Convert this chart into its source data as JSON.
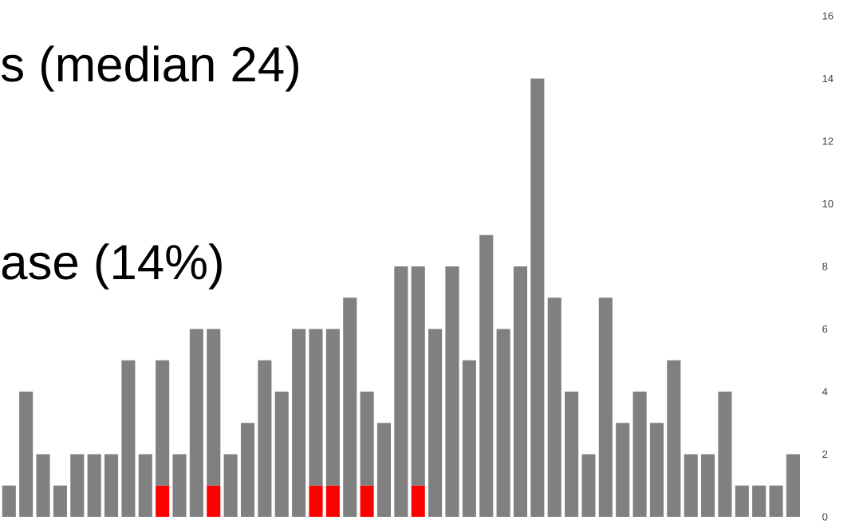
{
  "chart_data": {
    "type": "bar",
    "stacked": true,
    "annotations": [
      "s (median 24)",
      "ase (14%)"
    ],
    "categories": [
      null,
      null,
      null,
      null,
      null,
      null,
      null,
      null,
      null,
      null,
      null,
      null,
      null,
      null,
      null,
      null,
      null,
      null,
      null,
      null,
      null,
      null,
      null,
      null,
      null,
      null,
      null,
      null,
      null,
      null,
      null,
      null,
      null,
      null,
      null,
      null,
      null,
      null,
      null,
      null,
      null,
      null,
      null,
      null,
      null,
      null,
      null
    ],
    "series": [
      {
        "color": "#ff0000",
        "values": [
          null,
          null,
          null,
          null,
          null,
          null,
          null,
          null,
          null,
          1,
          null,
          null,
          1,
          null,
          null,
          null,
          null,
          null,
          1,
          1,
          null,
          1,
          null,
          null,
          1,
          null,
          null,
          null,
          null,
          null,
          null,
          null,
          null,
          null,
          null,
          null,
          null,
          null,
          null,
          null,
          null,
          null,
          null,
          null,
          null,
          null,
          null
        ]
      },
      {
        "color": "#808080",
        "values": [
          1,
          4,
          2,
          1,
          2,
          2,
          2,
          5,
          2,
          4,
          2,
          6,
          5,
          2,
          3,
          5,
          4,
          6,
          5,
          5,
          7,
          3,
          3,
          8,
          7,
          6,
          8,
          5,
          9,
          6,
          8,
          14,
          7,
          4,
          2,
          7,
          3,
          4,
          3,
          5,
          2,
          2,
          4,
          1,
          1,
          1,
          2
        ]
      }
    ],
    "ylim": [
      0,
      16
    ],
    "yticks": [
      0,
      2,
      4,
      6,
      8,
      10,
      12,
      14,
      16
    ],
    "grid": false,
    "tick_labels": "y"
  }
}
